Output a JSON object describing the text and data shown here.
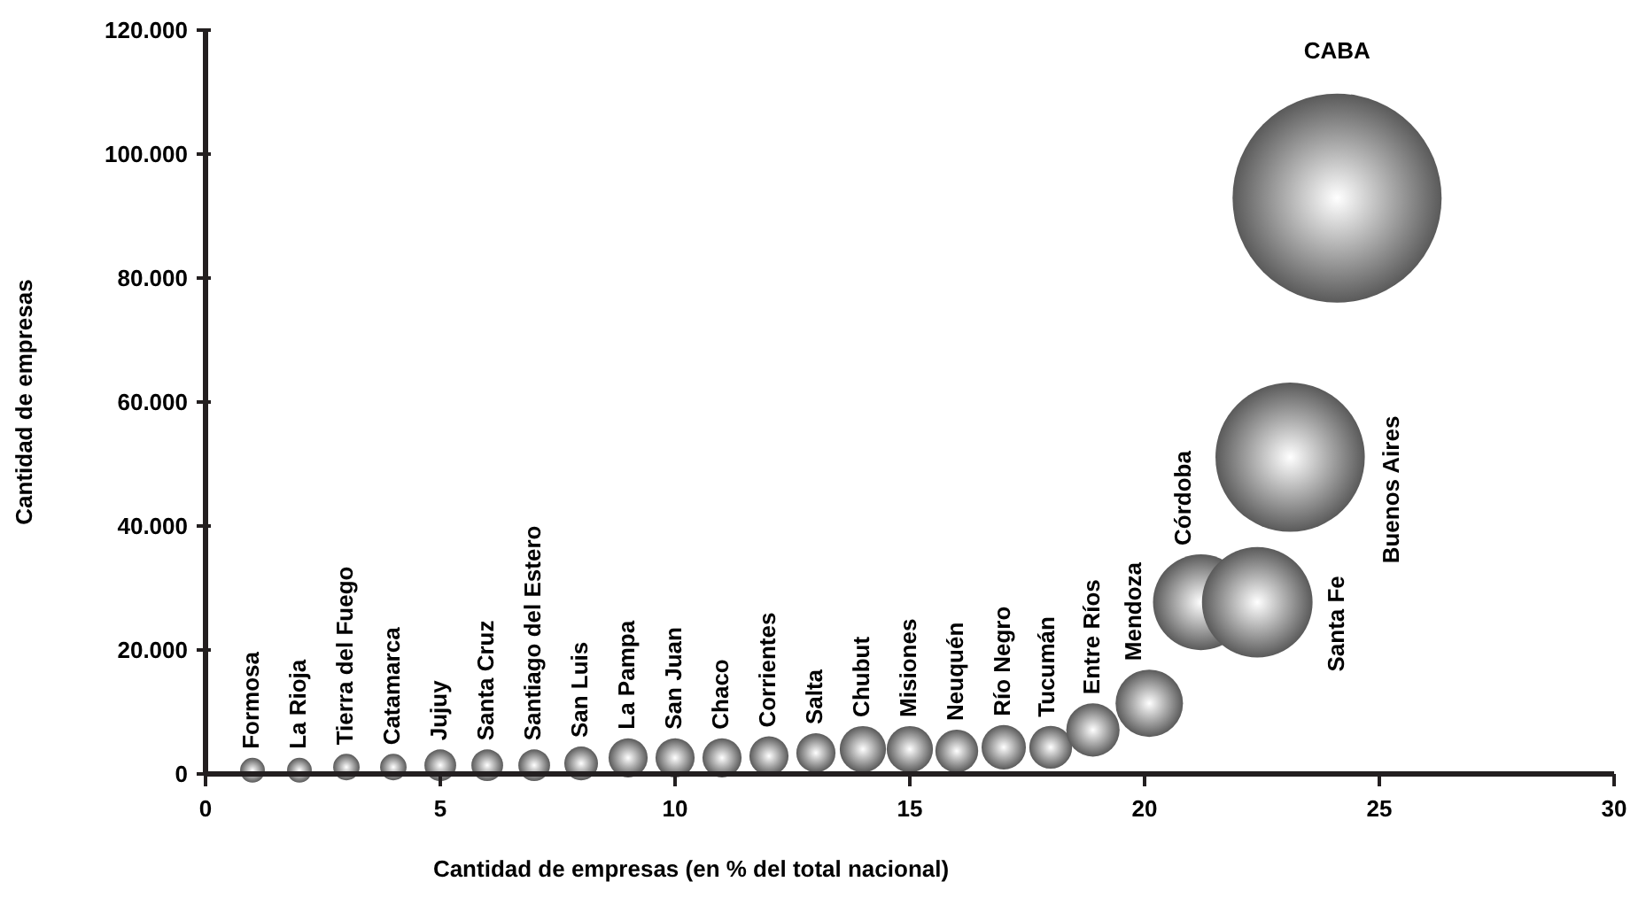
{
  "chart_data": {
    "type": "bubble",
    "xlabel": "Cantidad de empresas (en % del total nacional)",
    "ylabel": "Cantidad de empresas",
    "xlim": [
      0,
      30
    ],
    "xticks": [
      0,
      5,
      10,
      15,
      20,
      25,
      30
    ],
    "ylim": [
      0,
      120000
    ],
    "yticks": [
      {
        "value": 0,
        "label": "0"
      },
      {
        "value": 20000,
        "label": "20.000"
      },
      {
        "value": 40000,
        "label": "40.000"
      },
      {
        "value": 60000,
        "label": "60.000"
      },
      {
        "value": 80000,
        "label": "80.000"
      },
      {
        "value": 100000,
        "label": "100.000"
      },
      {
        "value": 120000,
        "label": "120.000"
      }
    ],
    "marker": "circle",
    "series": [
      {
        "name": "Formosa",
        "color": "#5a5a5a",
        "x": [
          1
        ],
        "values": [
          600
        ],
        "sizes": [
          0.014
        ]
      },
      {
        "name": "La Rioja",
        "color": "#5a5a5a",
        "x": [
          2
        ],
        "values": [
          600
        ],
        "sizes": [
          0.014
        ]
      },
      {
        "name": "Tierra del Fuego",
        "color": "#5a5a5a",
        "x": [
          3
        ],
        "values": [
          1100
        ],
        "sizes": [
          0.016
        ]
      },
      {
        "name": "Catamarca",
        "color": "#5a5a5a",
        "x": [
          4
        ],
        "values": [
          1100
        ],
        "sizes": [
          0.016
        ]
      },
      {
        "name": "Jujuy",
        "color": "#5a5a5a",
        "x": [
          5
        ],
        "values": [
          1400
        ],
        "sizes": [
          0.023
        ]
      },
      {
        "name": "Santa Cruz",
        "color": "#5a5a5a",
        "x": [
          6
        ],
        "values": [
          1400
        ],
        "sizes": [
          0.023
        ]
      },
      {
        "name": "Santiago del Estero",
        "color": "#5a5a5a",
        "x": [
          7
        ],
        "values": [
          1400
        ],
        "sizes": [
          0.023
        ]
      },
      {
        "name": "San Luis",
        "color": "#5a5a5a",
        "x": [
          8
        ],
        "values": [
          1700
        ],
        "sizes": [
          0.026
        ]
      },
      {
        "name": "La Pampa",
        "color": "#5a5a5a",
        "x": [
          9
        ],
        "values": [
          2600
        ],
        "sizes": [
          0.035
        ]
      },
      {
        "name": "San Juan",
        "color": "#5a5a5a",
        "x": [
          10
        ],
        "values": [
          2600
        ],
        "sizes": [
          0.035
        ]
      },
      {
        "name": "Chaco",
        "color": "#5a5a5a",
        "x": [
          11
        ],
        "values": [
          2600
        ],
        "sizes": [
          0.035
        ]
      },
      {
        "name": "Corrientes",
        "color": "#5a5a5a",
        "x": [
          12
        ],
        "values": [
          2900
        ],
        "sizes": [
          0.035
        ]
      },
      {
        "name": "Salta",
        "color": "#5a5a5a",
        "x": [
          13
        ],
        "values": [
          3400
        ],
        "sizes": [
          0.035
        ]
      },
      {
        "name": "Chubut",
        "color": "#5a5a5a",
        "x": [
          14
        ],
        "values": [
          4000
        ],
        "sizes": [
          0.049
        ]
      },
      {
        "name": "Misiones",
        "color": "#5a5a5a",
        "x": [
          15
        ],
        "values": [
          4000
        ],
        "sizes": [
          0.049
        ]
      },
      {
        "name": "Neuquén",
        "color": "#5a5a5a",
        "x": [
          16
        ],
        "values": [
          3700
        ],
        "sizes": [
          0.042
        ]
      },
      {
        "name": "Río Negro",
        "color": "#5a5a5a",
        "x": [
          17
        ],
        "values": [
          4300
        ],
        "sizes": [
          0.045
        ]
      },
      {
        "name": "Tucumán",
        "color": "#5a5a5a",
        "x": [
          18
        ],
        "values": [
          4300
        ],
        "sizes": [
          0.042
        ]
      },
      {
        "name": "Entre Ríos",
        "color": "#5a5a5a",
        "x": [
          18.9
        ],
        "values": [
          7100
        ],
        "sizes": [
          0.065
        ]
      },
      {
        "name": "Mendoza",
        "color": "#5a5a5a",
        "x": [
          20.1
        ],
        "values": [
          11400
        ],
        "sizes": [
          0.104
        ]
      },
      {
        "name": "Córdoba",
        "color": "#5a5a5a",
        "x": [
          21.2
        ],
        "values": [
          27700
        ],
        "sizes": [
          0.21
        ]
      },
      {
        "name": "Santa Fe",
        "color": "#5a5a5a",
        "x": [
          22.4
        ],
        "values": [
          27700
        ],
        "sizes": [
          0.28
        ]
      },
      {
        "name": "Buenos Aires",
        "color": "#5a5a5a",
        "x": [
          23.1
        ],
        "values": [
          51100
        ],
        "sizes": [
          0.51
        ]
      },
      {
        "name": "CABA",
        "color": "#5a5a5a",
        "x": [
          24.1
        ],
        "values": [
          92900
        ],
        "sizes": [
          1
        ]
      }
    ]
  }
}
